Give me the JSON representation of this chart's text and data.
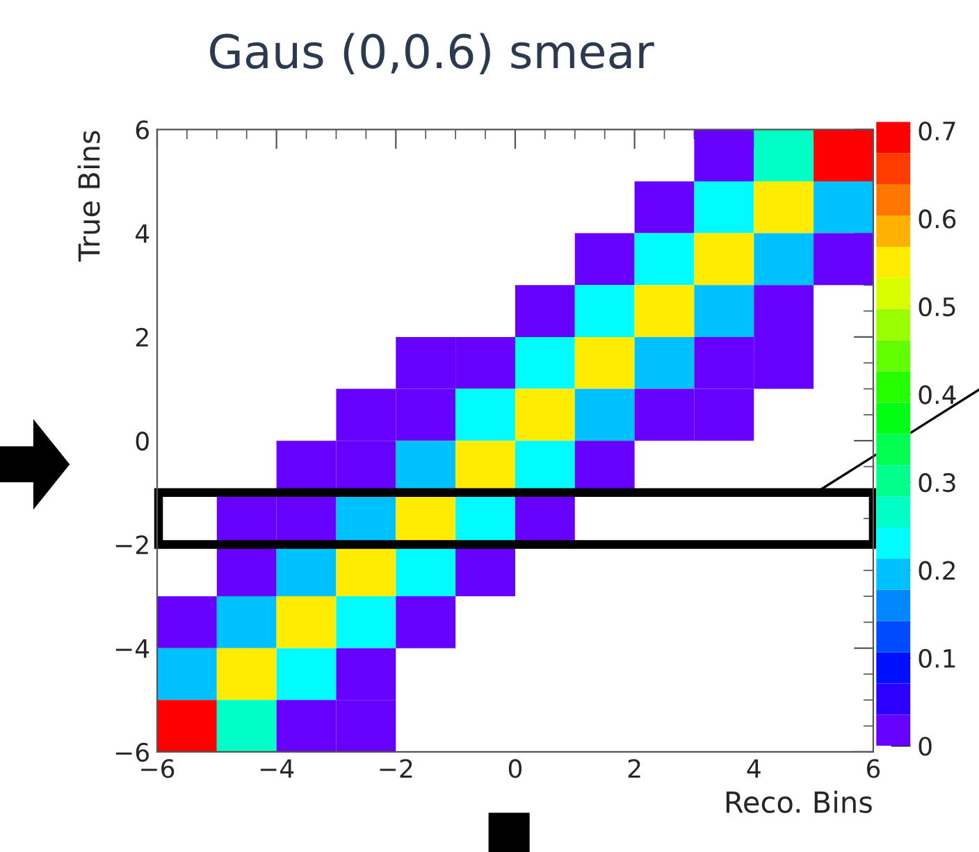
{
  "chart_data": {
    "type": "heatmap",
    "title": "Gaus (0,0.6) smear",
    "xlabel": "Reco. Bins",
    "ylabel": "True Bins",
    "xlim": [
      -6,
      6
    ],
    "ylim": [
      -6,
      6
    ],
    "xticks": [
      {
        "value": -6,
        "label": "−6"
      },
      {
        "value": -4,
        "label": "−4"
      },
      {
        "value": -2,
        "label": "−2"
      },
      0,
      2,
      4,
      6
    ],
    "yticks": [
      {
        "value": -6,
        "label": "−6"
      },
      {
        "value": -4,
        "label": "−4"
      },
      {
        "value": -2,
        "label": "−2"
      },
      0,
      2,
      4,
      6
    ],
    "clim": [
      0,
      0.71
    ],
    "cticks": [
      0,
      0.1,
      0.2,
      0.3,
      0.4,
      0.5,
      0.6,
      0.7
    ],
    "grid": false,
    "cells": [
      [
        null,
        null,
        null,
        null,
        null,
        null,
        null,
        null,
        null,
        0.02,
        0.26,
        0.7
      ],
      [
        null,
        null,
        null,
        null,
        null,
        null,
        null,
        null,
        0.02,
        0.23,
        0.55,
        0.19
      ],
      [
        null,
        null,
        null,
        null,
        null,
        null,
        null,
        0.02,
        0.23,
        0.55,
        0.19,
        0.02
      ],
      [
        null,
        null,
        null,
        null,
        null,
        null,
        0.02,
        0.23,
        0.55,
        0.19,
        0.02,
        null
      ],
      [
        null,
        null,
        null,
        null,
        0.02,
        0.02,
        0.23,
        0.55,
        0.19,
        0.02,
        0.02,
        null
      ],
      [
        null,
        null,
        null,
        0.02,
        0.02,
        0.23,
        0.55,
        0.19,
        0.02,
        0.02,
        null,
        null
      ],
      [
        null,
        null,
        0.02,
        0.02,
        0.19,
        0.55,
        0.23,
        0.02,
        null,
        null,
        null,
        null
      ],
      [
        null,
        0.02,
        0.02,
        0.19,
        0.55,
        0.23,
        0.02,
        null,
        null,
        null,
        null,
        null
      ],
      [
        null,
        0.02,
        0.19,
        0.55,
        0.23,
        0.02,
        null,
        null,
        null,
        null,
        null,
        null
      ],
      [
        0.02,
        0.19,
        0.55,
        0.23,
        0.02,
        null,
        null,
        null,
        null,
        null,
        null,
        null
      ],
      [
        0.19,
        0.55,
        0.23,
        0.02,
        null,
        null,
        null,
        null,
        null,
        null,
        null,
        null
      ],
      [
        0.7,
        0.26,
        0.02,
        0.02,
        null,
        null,
        null,
        null,
        null,
        null,
        null,
        null
      ]
    ]
  }
}
